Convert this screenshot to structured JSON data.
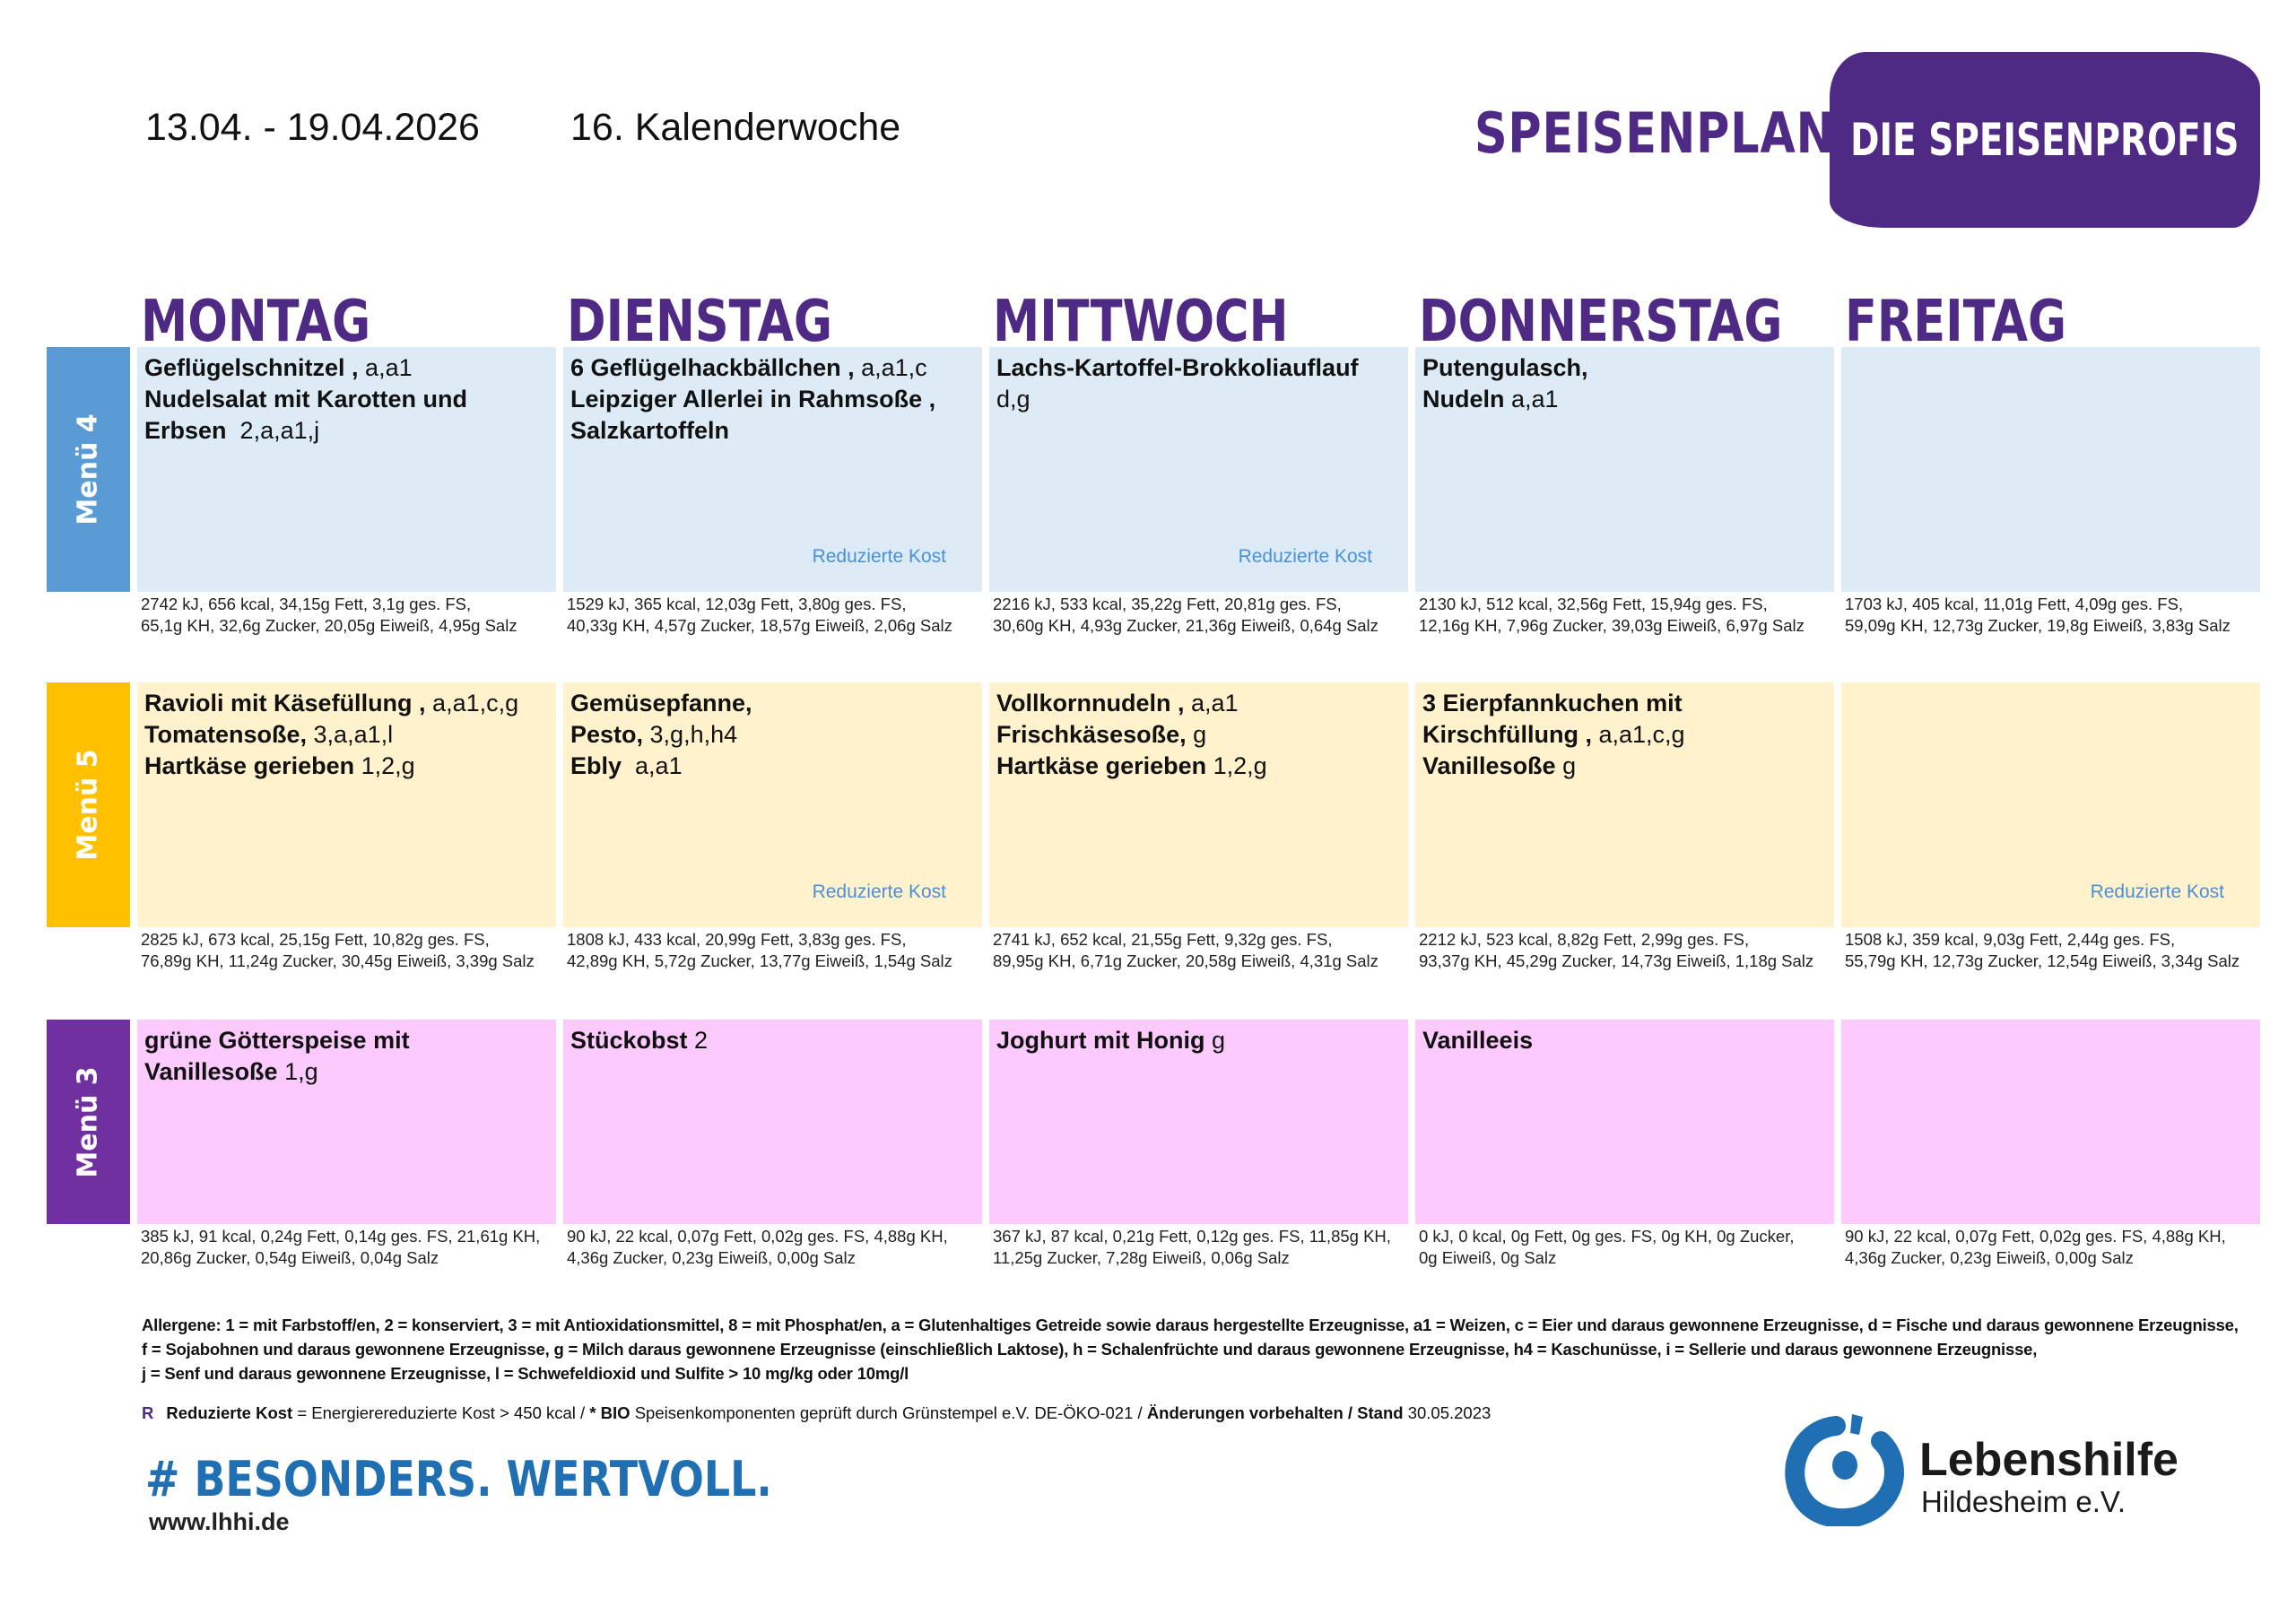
{
  "header": {
    "date_range": "13.04. - 19.04.2026",
    "week": "16. Kalenderwoche",
    "title": "SPEISENPLAN",
    "brand": "DIE SPEISENPROFIS"
  },
  "days": [
    "MONTAG",
    "DIENSTAG",
    "MITTWOCH",
    "DONNERSTAG",
    "FREITAG"
  ],
  "colors": {
    "purple": "#4e2a84",
    "menu4": "#5b9bd5",
    "menu5": "#ffc000",
    "menu3": "#7030a0"
  },
  "reduced_label": "Reduzierte Kost",
  "menus": [
    {
      "label": "Menü 4",
      "cells": [
        {
          "lines": [
            {
              "b": "Geflügelschnitzel ,",
              "r": " a,a1"
            },
            {
              "b": "Nudelsalat mit Karotten und",
              "r": ""
            },
            {
              "b": "Erbsen",
              "r": "  2,a,a1,j"
            }
          ],
          "reduced": false,
          "nutrition": [
            "2742 kJ, 656 kcal, 34,15g Fett, 3,1g ges. FS,",
            "65,1g KH, 32,6g Zucker, 20,05g Eiweiß, 4,95g Salz"
          ]
        },
        {
          "lines": [
            {
              "b": "6 Geflügelhackbällchen ,",
              "r": " a,a1,c"
            },
            {
              "b": "Leipziger Allerlei in Rahmsoße ,",
              "r": ""
            },
            {
              "b": "Salzkartoffeln",
              "r": ""
            }
          ],
          "reduced": true,
          "nutrition": [
            "1529 kJ, 365 kcal, 12,03g Fett, 3,80g ges. FS,",
            "40,33g KH, 4,57g Zucker, 18,57g Eiweiß, 2,06g Salz"
          ]
        },
        {
          "lines": [
            {
              "b": "Lachs-Kartoffel-Brokkoliauflauf",
              "r": ""
            },
            {
              "b": "",
              "r": "d,g"
            }
          ],
          "reduced": true,
          "nutrition": [
            "2216 kJ, 533 kcal, 35,22g Fett, 20,81g ges. FS,",
            "30,60g KH, 4,93g Zucker, 21,36g Eiweiß, 0,64g Salz"
          ]
        },
        {
          "lines": [
            {
              "b": "Putengulasch,",
              "r": ""
            },
            {
              "b": " Nudeln",
              "r": " a,a1"
            }
          ],
          "reduced": false,
          "nutrition": [
            "2130 kJ, 512 kcal, 32,56g Fett, 15,94g ges. FS,",
            "12,16g KH, 7,96g Zucker, 39,03g Eiweiß, 6,97g Salz"
          ]
        },
        {
          "lines": [],
          "reduced": false,
          "nutrition": [
            "1703 kJ, 405 kcal, 11,01g Fett, 4,09g ges. FS,",
            "59,09g KH, 12,73g Zucker, 19,8g Eiweiß, 3,83g Salz"
          ]
        }
      ]
    },
    {
      "label": "Menü 5",
      "cells": [
        {
          "lines": [
            {
              "b": "Ravioli mit Käsefüllung ,",
              "r": " a,a1,c,g"
            },
            {
              "b": "Tomatensoße,",
              "r": " 3,a,a1,l"
            },
            {
              "b": "Hartkäse gerieben",
              "r": " 1,2,g"
            }
          ],
          "reduced": false,
          "nutrition": [
            "2825 kJ, 673 kcal, 25,15g Fett, 10,82g ges. FS,",
            "76,89g KH, 11,24g Zucker, 30,45g Eiweiß, 3,39g Salz"
          ]
        },
        {
          "lines": [
            {
              "b": "Gemüsepfanne,",
              "r": ""
            },
            {
              "b": "Pesto,",
              "r": " 3,g,h,h4"
            },
            {
              "b": "Ebly",
              "r": "  a,a1"
            }
          ],
          "reduced": true,
          "nutrition": [
            "1808 kJ, 433 kcal, 20,99g Fett, 3,83g ges. FS,",
            "42,89g KH, 5,72g Zucker, 13,77g Eiweiß, 1,54g Salz"
          ]
        },
        {
          "lines": [
            {
              "b": "Vollkornnudeln ,",
              "r": " a,a1"
            },
            {
              "b": "Frischkäsesoße,",
              "r": " g"
            },
            {
              "b": "Hartkäse gerieben",
              "r": " 1,2,g"
            }
          ],
          "reduced": false,
          "nutrition": [
            "2741 kJ, 652 kcal, 21,55g Fett, 9,32g ges. FS,",
            "89,95g KH, 6,71g Zucker, 20,58g Eiweiß, 4,31g Salz"
          ]
        },
        {
          "lines": [
            {
              "b": "3 Eierpfannkuchen mit",
              "r": ""
            },
            {
              "b": "Kirschfüllung ,",
              "r": " a,a1,c,g"
            },
            {
              "b": "Vanillesoße",
              "r": " g"
            }
          ],
          "reduced": false,
          "nutrition": [
            "2212 kJ, 523 kcal, 8,82g Fett, 2,99g ges. FS,",
            "93,37g KH, 45,29g Zucker, 14,73g Eiweiß, 1,18g Salz"
          ]
        },
        {
          "lines": [],
          "reduced": true,
          "nutrition": [
            "1508 kJ, 359 kcal, 9,03g Fett, 2,44g ges. FS,",
            "55,79g KH, 12,73g Zucker, 12,54g Eiweiß, 3,34g Salz"
          ]
        }
      ]
    },
    {
      "label": "Menü 3",
      "cells": [
        {
          "lines": [
            {
              "b": "grüne Götterspeise mit",
              "r": ""
            },
            {
              "b": "Vanillesoße",
              "r": " 1,g"
            }
          ],
          "reduced": false,
          "nutrition": [
            "385 kJ, 91 kcal, 0,24g Fett, 0,14g ges. FS, 21,61g KH,",
            "20,86g Zucker, 0,54g Eiweiß, 0,04g Salz"
          ]
        },
        {
          "lines": [
            {
              "b": "Stückobst",
              "r": " 2"
            }
          ],
          "reduced": false,
          "nutrition": [
            "90 kJ, 22 kcal, 0,07g Fett, 0,02g ges. FS, 4,88g KH,",
            "4,36g Zucker, 0,23g Eiweiß, 0,00g Salz"
          ]
        },
        {
          "lines": [
            {
              "b": "Joghurt mit Honig",
              "r": " g"
            }
          ],
          "reduced": false,
          "nutrition": [
            "367 kJ, 87 kcal, 0,21g Fett, 0,12g ges. FS, 11,85g KH,",
            "11,25g Zucker, 7,28g Eiweiß, 0,06g Salz"
          ]
        },
        {
          "lines": [
            {
              "b": "Vanilleeis",
              "r": ""
            }
          ],
          "reduced": false,
          "nutrition": [
            "0 kJ, 0 kcal, 0g Fett, 0g ges. FS, 0g KH, 0g Zucker,",
            "0g Eiweiß, 0g Salz"
          ]
        },
        {
          "lines": [],
          "reduced": false,
          "nutrition": [
            "90 kJ, 22 kcal, 0,07g Fett, 0,02g ges. FS, 4,88g KH,",
            "4,36g Zucker, 0,23g Eiweiß, 0,00g Salz"
          ]
        }
      ]
    }
  ],
  "footer": {
    "allergens": [
      "Allergene: 1 = mit Farbstoff/en, 2 = konserviert, 3 = mit Antioxidationsmittel, 8 = mit Phosphat/en, a = Glutenhaltiges Getreide sowie daraus hergestellte Erzeugnisse, a1 = Weizen, c = Eier und daraus gewonnene Erzeugnisse, d = Fische und daraus gewonnene Erzeugnisse,",
      "f = Sojabohnen und daraus gewonnene Erzeugnisse, g = Milch daraus gewonnene Erzeugnisse (einschließlich Laktose), h = Schalenfrüchte und daraus gewonnene Erzeugnisse, h4 = Kaschunüsse, i = Sellerie und daraus gewonnene Erzeugnisse,",
      "j = Senf und daraus gewonnene Erzeugnisse, l = Schwefeldioxid und Sulfite > 10 mg/kg oder 10mg/l"
    ],
    "legend": {
      "r": "R",
      "reduced_bold": "Reduzierte Kost",
      "reduced_text": " = Energierereduzierte Kost > 450 kcal / ",
      "bio_bold": "* BIO",
      "bio_text": " Speisenkomponenten geprüft durch Grünstempel e.V. DE-ÖKO-021 / ",
      "changes_bold": "Änderungen vorbehalten / Stand",
      "date": " 30.05.2023"
    },
    "hashtag": "# BESONDERS. WERTVOLL.",
    "website": "www.lhhi.de",
    "org_name": "Lebenshilfe",
    "org_sub": "Hildesheim e.V."
  }
}
